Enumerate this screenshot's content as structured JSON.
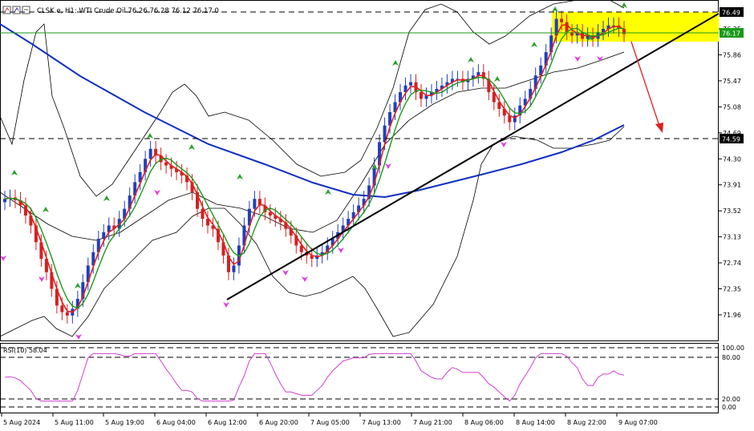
{
  "header": {
    "symbol_line": "CLSK.e, H1:  WTI Crude Oil  76.26 76.28 76.12 76.17  0"
  },
  "price_scale": {
    "labels": [
      "76.25",
      "75.86",
      "75.47",
      "75.08",
      "74.69",
      "74.30",
      "73.91",
      "73.52",
      "73.13",
      "72.74",
      "72.35",
      "71.96"
    ],
    "current_price_label": "76.17",
    "resistance_label": "76.49",
    "support_label": "74.59"
  },
  "rsi": {
    "label": "RSI(10) 58.04",
    "scale_labels": [
      "100.00",
      "80.00",
      "20.00",
      "0.00"
    ]
  },
  "time_axis": {
    "labels": [
      "5 Aug 2024",
      "5 Aug 11:00",
      "5 Aug 19:00",
      "6 Aug 04:00",
      "6 Aug 12:00",
      "6 Aug 20:00",
      "7 Aug 05:00",
      "7 Aug 13:00",
      "7 Aug 21:00",
      "8 Aug 06:00",
      "8 Aug 14:00",
      "8 Aug 22:00",
      "9 Aug 07:00"
    ]
  },
  "colors": {
    "bull": "#1f3fbf",
    "bear": "#d42020",
    "ma_fast": "#e02020",
    "ma_slow": "#1a9a1a",
    "ma_long": "#1030c0",
    "bands": "#000000",
    "rsi_line": "#d040d0",
    "highlight_zone": "#ffff00",
    "arrow_up": "#2aa02a",
    "arrow_down": "#e040e0",
    "forecast_arrow": "#e02020"
  },
  "chart_data": {
    "type": "candlestick",
    "symbol": "CLSK.e",
    "timeframe": "H1",
    "instrument": "WTI Crude Oil",
    "ohlc": {
      "open": 76.26,
      "high": 76.28,
      "low": 76.12,
      "close": 76.17
    },
    "y_range": [
      71.75,
      76.6
    ],
    "key_levels": {
      "resistance": 76.49,
      "support": 74.59,
      "current": 76.17
    },
    "rsi_period": 10,
    "rsi_value": 58.04,
    "rsi_levels": [
      100,
      80,
      20,
      0
    ],
    "x_tick_labels": [
      "5 Aug 2024",
      "5 Aug 11:00",
      "5 Aug 19:00",
      "6 Aug 04:00",
      "6 Aug 12:00",
      "6 Aug 20:00",
      "7 Aug 05:00",
      "7 Aug 13:00",
      "7 Aug 21:00",
      "8 Aug 06:00",
      "8 Aug 14:00",
      "8 Aug 22:00",
      "9 Aug 07:00"
    ],
    "close_series": [
      73.7,
      73.72,
      73.68,
      73.6,
      73.45,
      73.3,
      73.05,
      72.8,
      72.6,
      72.35,
      72.1,
      72.0,
      71.95,
      72.05,
      72.2,
      72.45,
      72.7,
      72.9,
      73.1,
      73.2,
      73.3,
      73.25,
      73.4,
      73.55,
      73.75,
      73.95,
      74.1,
      74.3,
      74.45,
      74.35,
      74.25,
      74.2,
      74.15,
      74.1,
      74.05,
      73.95,
      73.8,
      73.55,
      73.4,
      73.3,
      73.25,
      73.05,
      72.85,
      72.6,
      72.7,
      73.0,
      73.3,
      73.55,
      73.7,
      73.6,
      73.5,
      73.45,
      73.4,
      73.35,
      73.25,
      73.15,
      73.0,
      72.9,
      72.85,
      72.8,
      72.85,
      72.9,
      73.0,
      73.1,
      73.2,
      73.3,
      73.4,
      73.5,
      73.6,
      73.7,
      73.9,
      74.2,
      74.55,
      74.8,
      75.0,
      75.15,
      75.3,
      75.4,
      75.45,
      75.3,
      75.2,
      75.25,
      75.3,
      75.35,
      75.4,
      75.45,
      75.5,
      75.5,
      75.45,
      75.5,
      75.55,
      75.6,
      75.5,
      75.3,
      75.15,
      75.05,
      74.95,
      74.85,
      74.95,
      75.1,
      75.2,
      75.35,
      75.55,
      75.7,
      75.9,
      76.15,
      76.4,
      76.35,
      76.2,
      76.15,
      76.2,
      76.1,
      76.15,
      76.1,
      76.2,
      76.25,
      76.3,
      76.3,
      76.25,
      76.17
    ],
    "series": [
      {
        "name": "Price",
        "type": "candlestick"
      },
      {
        "type": "line"
      },
      {
        "type": "line"
      },
      {
        "type": "line"
      },
      {
        "type": "bands"
      },
      {
        "type": "line",
        "pane": "rsi"
      }
    ],
    "drawn_objects": [
      "ascending trendline",
      "horizontal dashed line at 76.49",
      "horizontal dashed line at 74.59",
      "yellow highlight zone",
      "red forecast arrow pointing down"
    ]
  }
}
